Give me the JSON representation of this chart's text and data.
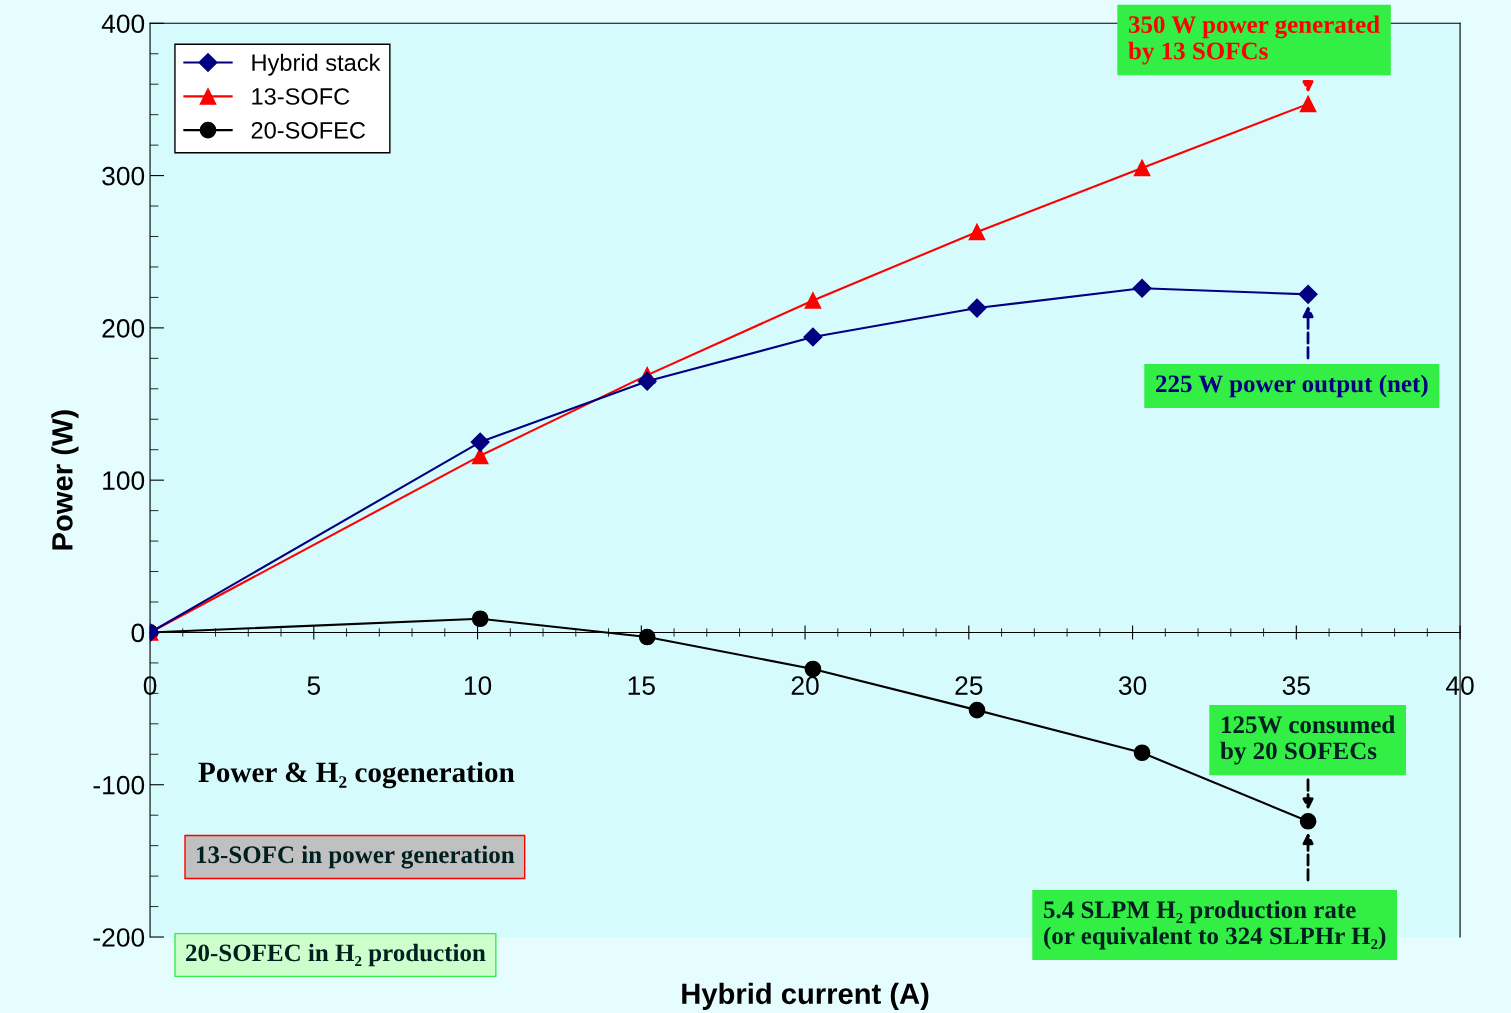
{
  "chart_data": {
    "type": "line",
    "xlabel": "Hybrid current (A)",
    "ylabel": "Power (W)",
    "xlim": [
      0,
      40
    ],
    "xticks": [
      0,
      5,
      10,
      15,
      20,
      25,
      30,
      35,
      40
    ],
    "ylim": [
      -200,
      400
    ],
    "yticks": [
      -200,
      -100,
      0,
      100,
      200,
      300,
      400
    ],
    "grid": false,
    "legend": "top left",
    "series": [
      {
        "name": "Hybrid stack",
        "color": "#000080",
        "marker": "diamond",
        "x": [
          0,
          10.08,
          15.18,
          20.24,
          25.25,
          30.29,
          35.36
        ],
        "values": [
          0,
          125,
          165,
          194,
          213,
          226,
          222
        ]
      },
      {
        "name": "13-SOFC",
        "color": "#ff0000",
        "marker": "triangle",
        "x": [
          0,
          10.08,
          15.18,
          20.24,
          25.25,
          30.29,
          35.36
        ],
        "values": [
          0,
          116,
          169,
          218,
          263,
          305,
          347
        ]
      },
      {
        "name": "20-SOFEC",
        "color": "#000000",
        "marker": "circle",
        "x": [
          0,
          10.08,
          15.18,
          20.24,
          25.25,
          30.29,
          35.36
        ],
        "values": [
          0,
          9,
          -3,
          -24,
          -51,
          -79,
          -124
        ]
      }
    ],
    "annotations": [
      "350 W power generated\nby 13 SOFCs",
      "225 W power output (net)",
      "125W consumed\nby 20 SOFECs",
      "5.4 SLPM H₂ production rate\n(or equivalent to 324 SLPHr H₂)",
      "Power & H₂ cogeneration",
      "13-SOFC in power generation",
      "20-SOFEC in H₂ production"
    ]
  }
}
